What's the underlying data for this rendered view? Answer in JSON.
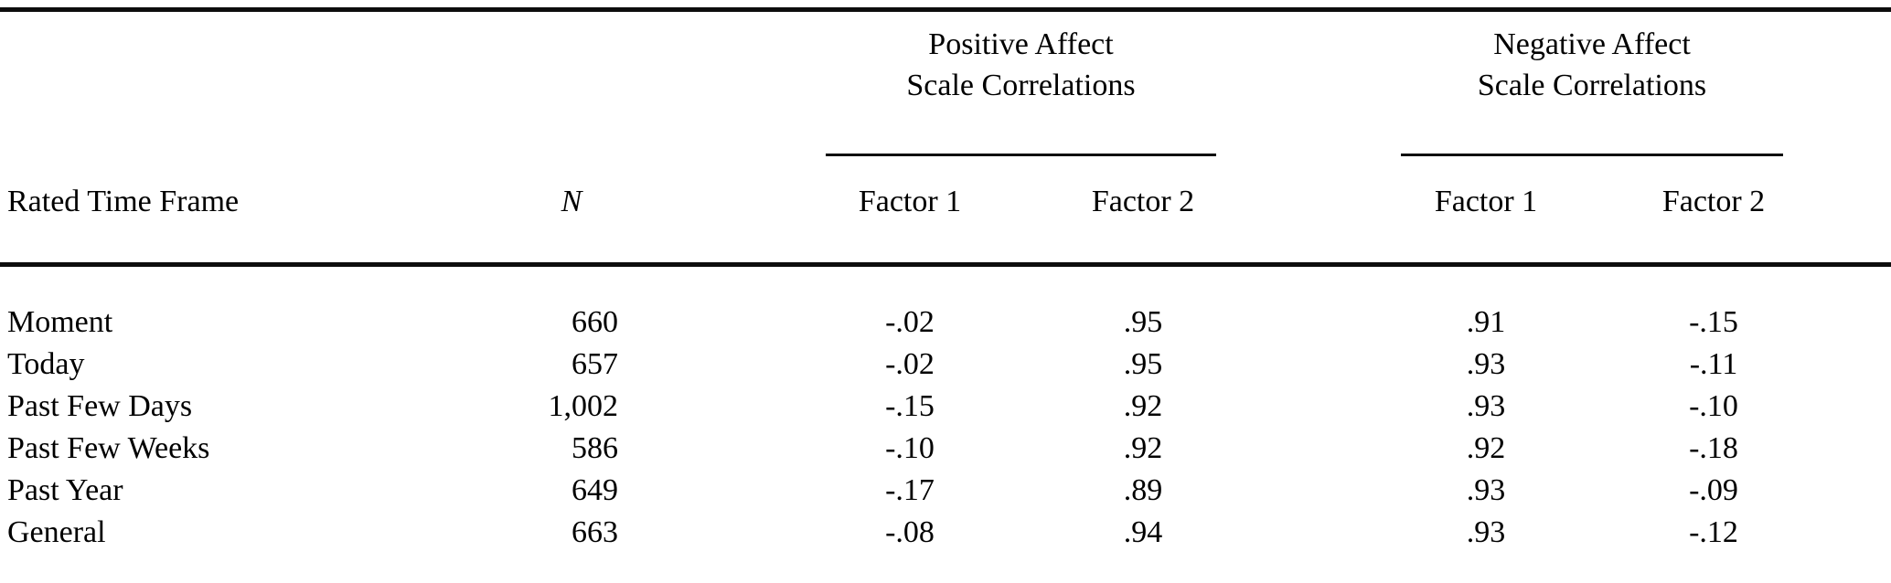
{
  "page": {
    "background": "#ffffff",
    "text_color": "#000000",
    "rule_color": "#0d0d0d"
  },
  "table": {
    "spanners": [
      {
        "line1": "Positive Affect",
        "line2": "Scale Correlations"
      },
      {
        "line1": "Negative Affect",
        "line2": "Scale Correlations"
      }
    ],
    "headers": {
      "row_label": "Rated Time Frame",
      "n": "N",
      "pa_factor1": "Factor 1",
      "pa_factor2": "Factor 2",
      "na_factor1": "Factor 1",
      "na_factor2": "Factor 2"
    },
    "rows": [
      {
        "label": "Moment",
        "n": "660",
        "pa_f1": "-.02",
        "pa_f2": ".95",
        "na_f1": ".91",
        "na_f2": "-.15"
      },
      {
        "label": "Today",
        "n": "657",
        "pa_f1": "-.02",
        "pa_f2": ".95",
        "na_f1": ".93",
        "na_f2": "-.11"
      },
      {
        "label": "Past Few Days",
        "n": "1,002",
        "pa_f1": "-.15",
        "pa_f2": ".92",
        "na_f1": ".93",
        "na_f2": "-.10"
      },
      {
        "label": "Past Few Weeks",
        "n": "586",
        "pa_f1": "-.10",
        "pa_f2": ".92",
        "na_f1": ".92",
        "na_f2": "-.18"
      },
      {
        "label": "Past Year",
        "n": "649",
        "pa_f1": "-.17",
        "pa_f2": ".89",
        "na_f1": ".93",
        "na_f2": "-.09"
      },
      {
        "label": "General",
        "n": "663",
        "pa_f1": "-.08",
        "pa_f2": ".94",
        "na_f1": ".93",
        "na_f2": "-.12"
      }
    ]
  }
}
